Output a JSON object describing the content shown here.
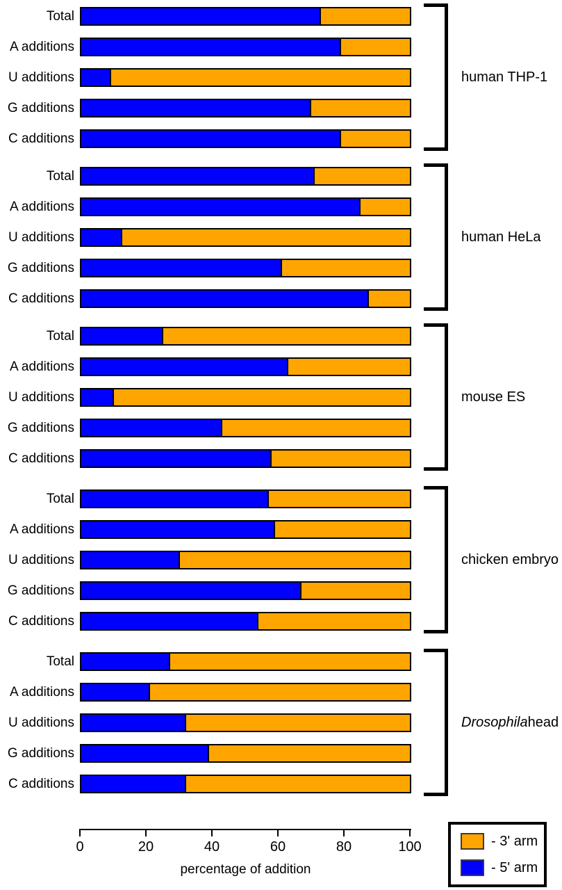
{
  "chart_data": {
    "type": "bar",
    "orientation": "horizontal",
    "stacked": true,
    "xlabel": "percentage of addition",
    "xlim": [
      0,
      100
    ],
    "x_ticks": [
      0,
      20,
      40,
      60,
      80,
      100
    ],
    "grid": false,
    "legend_position": "bottom-right",
    "series": [
      {
        "name": "5' arm",
        "color": "#0000FF"
      },
      {
        "name": "3' arm",
        "color": "#FFA500"
      }
    ],
    "groups": [
      {
        "italic": "",
        "text": "human THP-1",
        "rows": [
          {
            "label": "Total",
            "five_prime": 73,
            "three_prime": 27
          },
          {
            "label": "A additions",
            "five_prime": 79,
            "three_prime": 21
          },
          {
            "label": "U additions",
            "five_prime": 9,
            "three_prime": 91
          },
          {
            "label": "G additions",
            "five_prime": 70,
            "three_prime": 30
          },
          {
            "label": "C additions",
            "five_prime": 79,
            "three_prime": 21
          }
        ]
      },
      {
        "italic": "",
        "text": "human HeLa",
        "rows": [
          {
            "label": "Total",
            "five_prime": 71,
            "three_prime": 29
          },
          {
            "label": "A additions",
            "five_prime": 85,
            "three_prime": 15
          },
          {
            "label": "U additions",
            "five_prime": 12.5,
            "three_prime": 87.5
          },
          {
            "label": "G additions",
            "five_prime": 61,
            "three_prime": 39
          },
          {
            "label": "C additions",
            "five_prime": 87.5,
            "three_prime": 12.5
          }
        ]
      },
      {
        "italic": "",
        "text": "mouse ES",
        "rows": [
          {
            "label": "Total",
            "five_prime": 25,
            "three_prime": 75
          },
          {
            "label": "A additions",
            "five_prime": 63,
            "three_prime": 37
          },
          {
            "label": "U additions",
            "five_prime": 10,
            "three_prime": 90
          },
          {
            "label": "G additions",
            "five_prime": 43,
            "three_prime": 57
          },
          {
            "label": "C additions",
            "five_prime": 58,
            "three_prime": 42
          }
        ]
      },
      {
        "italic": "",
        "text": "chicken embryo",
        "rows": [
          {
            "label": "Total",
            "five_prime": 57,
            "three_prime": 43
          },
          {
            "label": "A additions",
            "five_prime": 59,
            "three_prime": 41
          },
          {
            "label": "U additions",
            "five_prime": 30,
            "three_prime": 70
          },
          {
            "label": "G additions",
            "five_prime": 67,
            "three_prime": 33
          },
          {
            "label": "C additions",
            "five_prime": 54,
            "three_prime": 46
          }
        ]
      },
      {
        "italic": "Drosophila",
        "text": " head",
        "rows": [
          {
            "label": "Total",
            "five_prime": 27,
            "three_prime": 73
          },
          {
            "label": "A additions",
            "five_prime": 21,
            "three_prime": 79
          },
          {
            "label": "U additions",
            "five_prime": 32,
            "three_prime": 68
          },
          {
            "label": "G additions",
            "five_prime": 39,
            "three_prime": 61
          },
          {
            "label": "C additions",
            "five_prime": 32,
            "three_prime": 68
          }
        ]
      }
    ]
  },
  "legend": {
    "items": [
      {
        "label": "- 3' arm",
        "color": "#FFA500"
      },
      {
        "label": "- 5' arm",
        "color": "#0000FF"
      }
    ]
  }
}
